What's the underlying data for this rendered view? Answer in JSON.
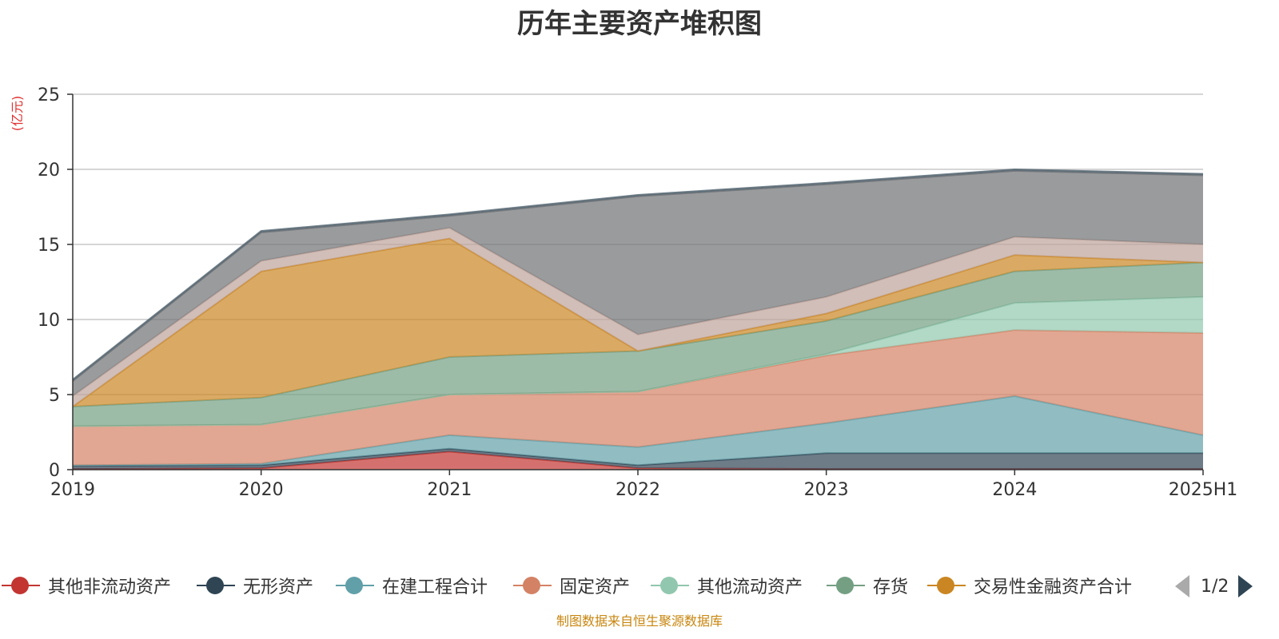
{
  "title": "历年主要资产堆积图",
  "unit_label": "(亿元)",
  "source_note": "制图数据来自恒生聚源数据库",
  "pager": {
    "text": "1/2"
  },
  "chart_data": {
    "type": "area",
    "stacked": true,
    "title": "历年主要资产堆积图",
    "ylabel": "(亿元)",
    "ylim": [
      0,
      25
    ],
    "yticks": [
      0,
      5,
      10,
      15,
      20,
      25
    ],
    "grid": true,
    "legend_position": "bottom",
    "categories": [
      "2019",
      "2020",
      "2021",
      "2022",
      "2023",
      "2024",
      "2025H1"
    ],
    "series": [
      {
        "name": "其他非流动资产",
        "color": "#c23531",
        "values": [
          0.05,
          0.1,
          1.2,
          0.1,
          0.05,
          0.05,
          0.05
        ]
      },
      {
        "name": "无形资产",
        "color": "#2f4554",
        "values": [
          0.2,
          0.2,
          0.2,
          0.2,
          1.05,
          1.05,
          1.05
        ]
      },
      {
        "name": "在建工程合计",
        "color": "#61a0a8",
        "values": [
          0.05,
          0.1,
          0.9,
          1.2,
          2.0,
          3.8,
          1.2
        ]
      },
      {
        "name": "固定资产",
        "color": "#d48265",
        "values": [
          2.6,
          2.6,
          2.7,
          3.7,
          4.5,
          4.4,
          6.8
        ]
      },
      {
        "name": "其他流动资产",
        "color": "#91c7ae",
        "values": [
          0.0,
          0.0,
          0.0,
          0.0,
          0.1,
          1.8,
          2.4
        ]
      },
      {
        "name": "存货",
        "color": "#749f83",
        "values": [
          1.3,
          1.8,
          2.5,
          2.7,
          2.2,
          2.1,
          2.3
        ]
      },
      {
        "name": "交易性金融资产合计",
        "color": "#ca8622",
        "values": [
          0.0,
          8.4,
          7.9,
          0.0,
          0.5,
          1.1,
          0.0
        ]
      },
      {
        "name": "",
        "color": "#bda29a",
        "values": [
          0.7,
          0.7,
          0.7,
          1.1,
          1.1,
          1.2,
          1.2
        ]
      },
      {
        "name": "",
        "color": "#6e7074",
        "values": [
          1.0,
          1.9,
          0.8,
          9.2,
          7.5,
          4.4,
          4.6
        ]
      },
      {
        "name": "",
        "color": "#546570",
        "values": [
          0.1,
          0.1,
          0.1,
          0.1,
          0.1,
          0.1,
          0.1
        ]
      }
    ]
  }
}
